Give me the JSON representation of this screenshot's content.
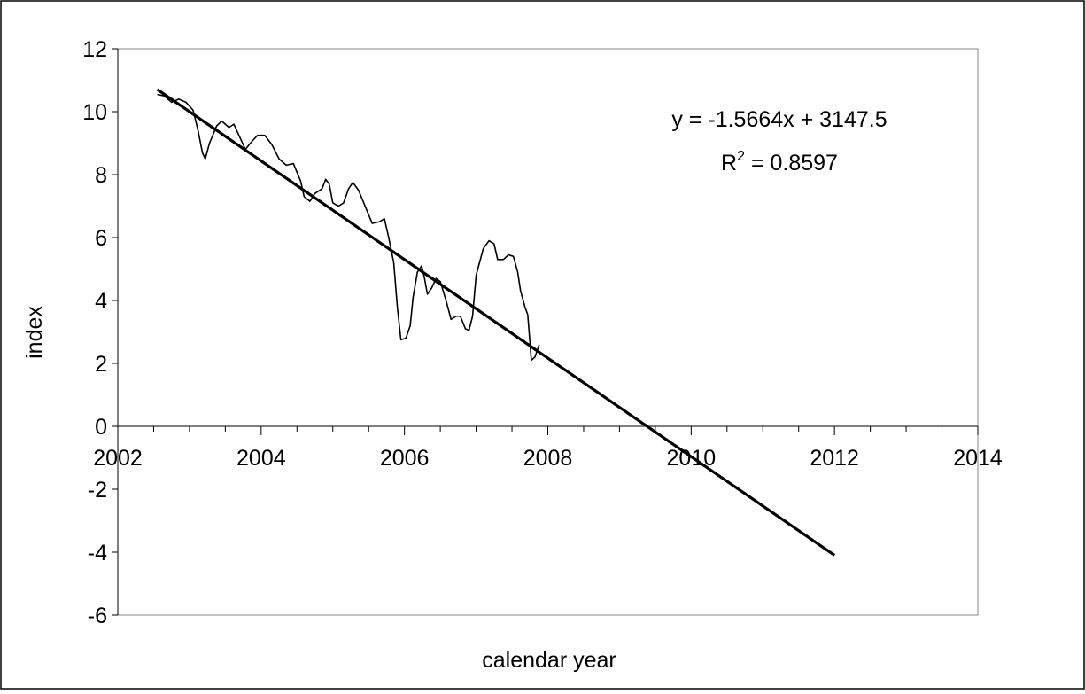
{
  "chart_data": {
    "type": "line",
    "title": "",
    "xlabel": "calendar year",
    "ylabel": "index",
    "xlim": [
      2002,
      2014
    ],
    "ylim": [
      -6,
      12
    ],
    "x_ticks": [
      2002,
      2004,
      2006,
      2008,
      2010,
      2012,
      2014
    ],
    "y_ticks": [
      -6,
      -4,
      -2,
      0,
      2,
      4,
      6,
      8,
      10,
      12
    ],
    "grid": false,
    "legend": "none",
    "series": [
      {
        "type": "line",
        "color": "#000000",
        "points": [
          [
            2002.55,
            10.55
          ],
          [
            2002.65,
            10.5
          ],
          [
            2002.75,
            10.3
          ],
          [
            2002.85,
            10.4
          ],
          [
            2002.95,
            10.3
          ],
          [
            2003.05,
            10.05
          ],
          [
            2003.12,
            9.4
          ],
          [
            2003.18,
            8.7
          ],
          [
            2003.22,
            8.5
          ],
          [
            2003.28,
            9.0
          ],
          [
            2003.38,
            9.55
          ],
          [
            2003.45,
            9.7
          ],
          [
            2003.55,
            9.5
          ],
          [
            2003.62,
            9.6
          ],
          [
            2003.7,
            9.2
          ],
          [
            2003.78,
            8.8
          ],
          [
            2003.85,
            9.0
          ],
          [
            2003.95,
            9.25
          ],
          [
            2004.05,
            9.25
          ],
          [
            2004.15,
            8.95
          ],
          [
            2004.25,
            8.5
          ],
          [
            2004.35,
            8.3
          ],
          [
            2004.45,
            8.35
          ],
          [
            2004.55,
            7.8
          ],
          [
            2004.6,
            7.3
          ],
          [
            2004.68,
            7.15
          ],
          [
            2004.75,
            7.4
          ],
          [
            2004.85,
            7.55
          ],
          [
            2004.9,
            7.85
          ],
          [
            2004.95,
            7.7
          ],
          [
            2005.0,
            7.1
          ],
          [
            2005.08,
            7.0
          ],
          [
            2005.15,
            7.1
          ],
          [
            2005.22,
            7.55
          ],
          [
            2005.28,
            7.75
          ],
          [
            2005.36,
            7.5
          ],
          [
            2005.45,
            7.0
          ],
          [
            2005.55,
            6.45
          ],
          [
            2005.65,
            6.5
          ],
          [
            2005.72,
            6.6
          ],
          [
            2005.78,
            6.0
          ],
          [
            2005.85,
            5.2
          ],
          [
            2005.9,
            3.8
          ],
          [
            2005.95,
            2.75
          ],
          [
            2006.02,
            2.8
          ],
          [
            2006.08,
            3.2
          ],
          [
            2006.12,
            4.1
          ],
          [
            2006.18,
            4.9
          ],
          [
            2006.24,
            5.1
          ],
          [
            2006.28,
            4.7
          ],
          [
            2006.32,
            4.2
          ],
          [
            2006.38,
            4.4
          ],
          [
            2006.44,
            4.7
          ],
          [
            2006.5,
            4.6
          ],
          [
            2006.58,
            4.0
          ],
          [
            2006.65,
            3.4
          ],
          [
            2006.72,
            3.5
          ],
          [
            2006.78,
            3.5
          ],
          [
            2006.85,
            3.1
          ],
          [
            2006.9,
            3.05
          ],
          [
            2006.95,
            3.5
          ],
          [
            2007.0,
            4.8
          ],
          [
            2007.1,
            5.65
          ],
          [
            2007.18,
            5.9
          ],
          [
            2007.25,
            5.8
          ],
          [
            2007.3,
            5.3
          ],
          [
            2007.38,
            5.3
          ],
          [
            2007.45,
            5.45
          ],
          [
            2007.52,
            5.4
          ],
          [
            2007.58,
            4.9
          ],
          [
            2007.62,
            4.3
          ],
          [
            2007.68,
            3.8
          ],
          [
            2007.72,
            3.55
          ],
          [
            2007.77,
            2.1
          ],
          [
            2007.82,
            2.2
          ],
          [
            2007.88,
            2.6
          ]
        ]
      },
      {
        "type": "trendline",
        "color": "#000000",
        "slope": -1.5664,
        "intercept": 3147.5,
        "x_range": [
          2002.55,
          2012.0
        ]
      }
    ],
    "annotations": [
      {
        "id": "equation",
        "text": "y = -1.5664x + 3147.5"
      },
      {
        "id": "r2",
        "base": "R",
        "sup": "2",
        "rest": " = 0.8597"
      }
    ]
  }
}
